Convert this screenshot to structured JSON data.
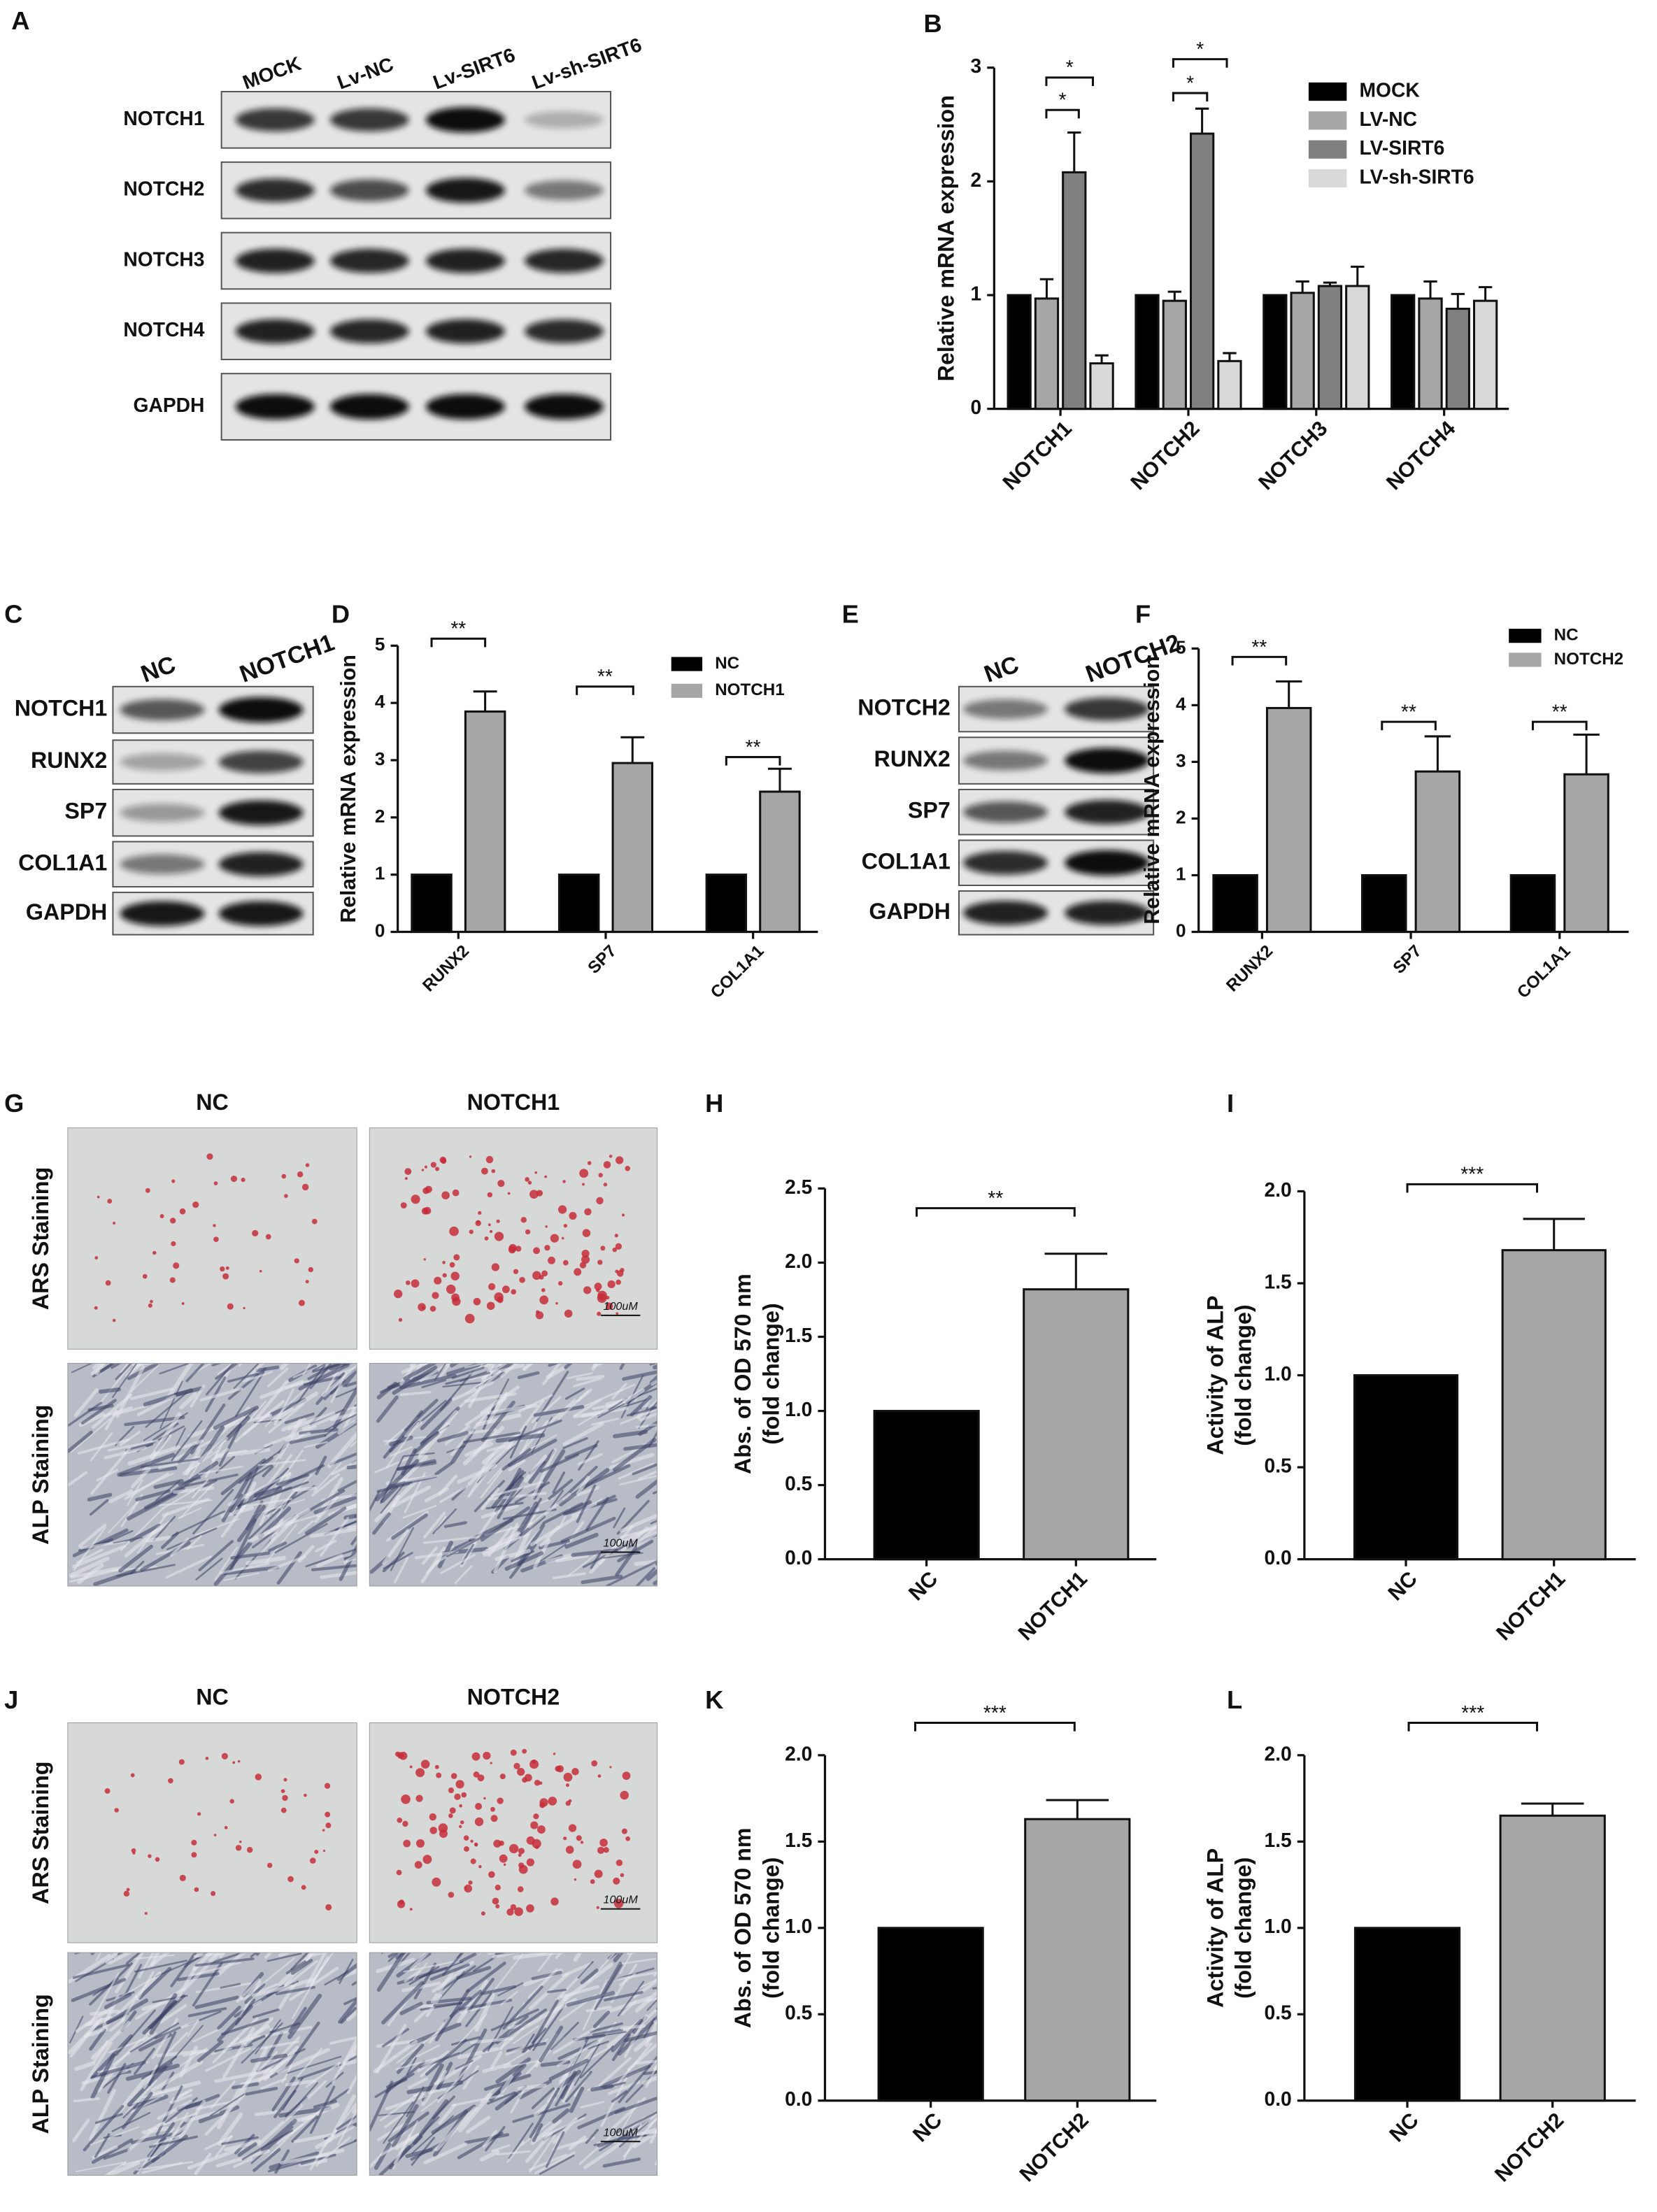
{
  "blots": [
    {
      "panel": "A",
      "lanes": [
        "MOCK",
        "Lv-NC",
        "Lv-SIRT6",
        "Lv-sh-SIRT6"
      ],
      "rows": [
        "NOTCH1",
        "NOTCH2",
        "NOTCH3",
        "NOTCH4",
        "GAPDH"
      ]
    },
    {
      "panel": "C",
      "lanes": [
        "NC",
        "NOTCH1"
      ],
      "rows": [
        "NOTCH1",
        "RUNX2",
        "SP7",
        "COL1A1",
        "GAPDH"
      ]
    },
    {
      "panel": "E",
      "lanes": [
        "NC",
        "NOTCH2"
      ],
      "rows": [
        "NOTCH2",
        "RUNX2",
        "SP7",
        "COL1A1",
        "GAPDH"
      ]
    }
  ],
  "stainings": [
    {
      "panel": "G",
      "columns": [
        "NC",
        "NOTCH1"
      ],
      "rows": [
        "ARS Staining",
        "ALP Staining"
      ],
      "scale_bar": "100uM"
    },
    {
      "panel": "J",
      "columns": [
        "NC",
        "NOTCH2"
      ],
      "rows": [
        "ARS Staining",
        "ALP Staining"
      ],
      "scale_bar": "100uM"
    }
  ],
  "chart_data": [
    {
      "panel": "B",
      "type": "bar",
      "ylabel": "Relative  mRNA expression",
      "categories": [
        "NOTCH1",
        "NOTCH2",
        "NOTCH3",
        "NOTCH4"
      ],
      "series": [
        {
          "name": "MOCK",
          "color": "#000000",
          "values": [
            1,
            1,
            1,
            1
          ]
        },
        {
          "name": "LV-NC",
          "color": "#a6a6a6",
          "values": [
            0.97,
            0.95,
            1.02,
            0.97
          ],
          "errors": [
            0.17,
            0.08,
            0.1,
            0.15
          ]
        },
        {
          "name": "LV-SIRT6",
          "color": "#808080",
          "values": [
            2.08,
            2.42,
            1.08,
            0.88
          ],
          "errors": [
            0.35,
            0.22,
            0.03,
            0.13
          ]
        },
        {
          "name": "LV-sh-SIRT6",
          "color": "#d9d9d9",
          "values": [
            0.4,
            0.42,
            1.08,
            0.95
          ],
          "errors": [
            0.07,
            0.07,
            0.17,
            0.12
          ]
        }
      ],
      "ylim": [
        0,
        3
      ],
      "yticks": [
        0,
        1,
        2,
        3
      ],
      "annotations": [
        "*",
        "*",
        "*",
        "*"
      ]
    },
    {
      "panel": "D",
      "type": "bar",
      "ylabel": "Relative  mRNA expression",
      "categories": [
        "RUNX2",
        "SP7",
        "COL1A1"
      ],
      "series": [
        {
          "name": "NC",
          "color": "#000000",
          "values": [
            1,
            1,
            1
          ]
        },
        {
          "name": "NOTCH1",
          "color": "#a6a6a6",
          "values": [
            3.85,
            2.95,
            2.45
          ],
          "errors": [
            0.35,
            0.45,
            0.4
          ]
        }
      ],
      "ylim": [
        0,
        5
      ],
      "yticks": [
        0,
        1,
        2,
        3,
        4,
        5
      ],
      "annotations": [
        "**",
        "**",
        "**"
      ]
    },
    {
      "panel": "F",
      "type": "bar",
      "ylabel": "Relative  mRNA expression",
      "categories": [
        "RUNX2",
        "SP7",
        "COL1A1"
      ],
      "series": [
        {
          "name": "NC",
          "color": "#000000",
          "values": [
            1,
            1,
            1
          ]
        },
        {
          "name": "NOTCH2",
          "color": "#a6a6a6",
          "values": [
            3.95,
            2.83,
            2.78
          ],
          "errors": [
            0.47,
            0.62,
            0.7
          ]
        }
      ],
      "ylim": [
        0,
        5
      ],
      "yticks": [
        0,
        1,
        2,
        3,
        4,
        5
      ],
      "annotations": [
        "**",
        "**",
        "**"
      ]
    },
    {
      "panel": "H",
      "type": "bar",
      "ylabel": [
        "Abs. of OD 570 nm",
        "(fold change)"
      ],
      "categories": [
        "NC",
        "NOTCH1"
      ],
      "values": [
        1,
        1.82
      ],
      "errors": [
        0,
        0.24
      ],
      "colors": [
        "#000000",
        "#a6a6a6"
      ],
      "ylim": [
        0,
        2.5
      ],
      "yticks": [
        {
          "value": 0,
          "label": "0.0"
        },
        0.5,
        {
          "value": 1,
          "label": "1.0"
        },
        1.5,
        {
          "value": 2,
          "label": "2.0"
        },
        2.5
      ],
      "annotations": [
        "**"
      ]
    },
    {
      "panel": "I",
      "type": "bar",
      "ylabel": [
        "Activity of ALP",
        "(fold change)"
      ],
      "categories": [
        "NC",
        "NOTCH1"
      ],
      "values": [
        1,
        1.68
      ],
      "errors": [
        0,
        0.17
      ],
      "colors": [
        "#000000",
        "#a6a6a6"
      ],
      "ylim": [
        0,
        2
      ],
      "yticks": [
        {
          "value": 0,
          "label": "0.0"
        },
        0.5,
        {
          "value": 1,
          "label": "1.0"
        },
        1.5,
        {
          "value": 2,
          "label": "2.0"
        }
      ],
      "annotations": [
        "***"
      ]
    },
    {
      "panel": "K",
      "type": "bar",
      "ylabel": [
        "Abs. of OD 570 nm",
        "(fold change)"
      ],
      "categories": [
        "NC",
        "NOTCH2"
      ],
      "values": [
        1,
        1.63
      ],
      "errors": [
        0,
        0.11
      ],
      "colors": [
        "#000000",
        "#a6a6a6"
      ],
      "ylim": [
        0,
        2
      ],
      "yticks": [
        {
          "value": 0,
          "label": "0.0"
        },
        0.5,
        {
          "value": 1,
          "label": "1.0"
        },
        1.5,
        {
          "value": 2,
          "label": "2.0"
        }
      ],
      "annotations": [
        "***"
      ]
    },
    {
      "panel": "L",
      "type": "bar",
      "ylabel": [
        "Activity of ALP",
        "(fold change)"
      ],
      "categories": [
        "NC",
        "NOTCH2"
      ],
      "values": [
        1,
        1.65
      ],
      "errors": [
        0,
        0.07
      ],
      "colors": [
        "#000000",
        "#a6a6a6"
      ],
      "ylim": [
        0,
        2
      ],
      "yticks": [
        {
          "value": 0,
          "label": "0.0"
        },
        0.5,
        {
          "value": 1,
          "label": "1.0"
        },
        1.5,
        {
          "value": 2,
          "label": "2.0"
        }
      ],
      "annotations": [
        "***"
      ]
    }
  ]
}
